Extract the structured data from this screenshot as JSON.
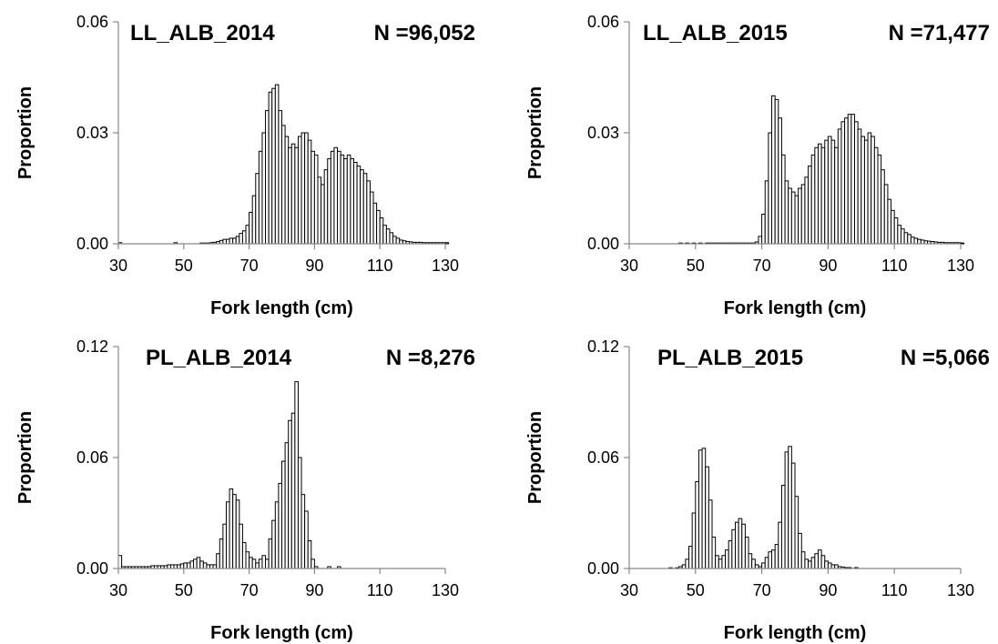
{
  "chart_data": [
    {
      "type": "bar",
      "title": "LL_ALB_2014",
      "n_label": "N =96,052",
      "xlabel": "Fork length (cm)",
      "ylabel": "Proportion",
      "xlim": [
        30,
        130
      ],
      "ylim": [
        0,
        0.06
      ],
      "xticks": [
        "30",
        "50",
        "70",
        "90",
        "110",
        "130"
      ],
      "yticks": [
        "0.00",
        "0.03",
        "0.06"
      ],
      "bar_color": "#ffffff",
      "edge_color": "#000000",
      "x_start": 30,
      "bin_width": 1,
      "values": [
        0.0003,
        0,
        0,
        0,
        0,
        0,
        0,
        0,
        0,
        0,
        0,
        0,
        0,
        0,
        0,
        0,
        0,
        0.0003,
        0,
        0,
        0,
        0,
        0,
        0,
        0,
        0.0002,
        0.0002,
        0.0002,
        0.0003,
        0.0004,
        0.0006,
        0.0009,
        0.0012,
        0.0012,
        0.0015,
        0.0015,
        0.002,
        0.0028,
        0.0035,
        0.005,
        0.0085,
        0.013,
        0.019,
        0.025,
        0.03,
        0.036,
        0.041,
        0.042,
        0.043,
        0.036,
        0.032,
        0.029,
        0.026,
        0.027,
        0.026,
        0.029,
        0.03,
        0.03,
        0.028,
        0.025,
        0.024,
        0.018,
        0.016,
        0.02,
        0.023,
        0.025,
        0.026,
        0.025,
        0.024,
        0.023,
        0.024,
        0.023,
        0.022,
        0.021,
        0.02,
        0.019,
        0.017,
        0.014,
        0.011,
        0.009,
        0.007,
        0.005,
        0.004,
        0.003,
        0.002,
        0.0015,
        0.001,
        0.0008,
        0.0006,
        0.0005,
        0.0004,
        0.0004,
        0.0004,
        0.0003,
        0.0003,
        0.0003,
        0.0003,
        0.0003,
        0.0003,
        0.0003,
        0.0003
      ]
    },
    {
      "type": "bar",
      "title": "LL_ALB_2015",
      "n_label": "N =71,477",
      "xlabel": "Fork length (cm)",
      "ylabel": "Proportion",
      "xlim": [
        30,
        130
      ],
      "ylim": [
        0,
        0.06
      ],
      "xticks": [
        "30",
        "50",
        "70",
        "90",
        "110",
        "130"
      ],
      "yticks": [
        "0.00",
        "0.03",
        "0.06"
      ],
      "bar_color": "#ffffff",
      "edge_color": "#000000",
      "x_start": 30,
      "bin_width": 1,
      "values": [
        0,
        0,
        0,
        0,
        0,
        0,
        0,
        0,
        0,
        0,
        0,
        0,
        0,
        0,
        0,
        0.0002,
        0,
        0.0002,
        0,
        0.0002,
        0,
        0.0002,
        0,
        0.0002,
        0.0002,
        0.0002,
        0.0002,
        0.0002,
        0.0002,
        0.0002,
        0.0002,
        0.0002,
        0.0002,
        0.0002,
        0.0002,
        0.0002,
        0.0002,
        0.0002,
        0.0005,
        0.002,
        0.008,
        0.017,
        0.03,
        0.04,
        0.039,
        0.034,
        0.024,
        0.017,
        0.015,
        0.014,
        0.013,
        0.015,
        0.016,
        0.018,
        0.021,
        0.024,
        0.026,
        0.027,
        0.026,
        0.028,
        0.029,
        0.028,
        0.026,
        0.031,
        0.033,
        0.034,
        0.035,
        0.035,
        0.033,
        0.031,
        0.029,
        0.028,
        0.03,
        0.029,
        0.026,
        0.024,
        0.02,
        0.016,
        0.012,
        0.009,
        0.007,
        0.005,
        0.004,
        0.003,
        0.0025,
        0.0018,
        0.0015,
        0.0012,
        0.001,
        0.0008,
        0.0007,
        0.0006,
        0.0005,
        0.0004,
        0.0004,
        0.0003,
        0.0003,
        0.0003,
        0.0003,
        0.0003,
        0.0002
      ]
    },
    {
      "type": "bar",
      "title": "PL_ALB_2014",
      "n_label": "N =8,276",
      "xlabel": "Fork length (cm)",
      "ylabel": "Proportion",
      "xlim": [
        30,
        130
      ],
      "ylim": [
        0,
        0.12
      ],
      "xticks": [
        "30",
        "50",
        "70",
        "90",
        "110",
        "130"
      ],
      "yticks": [
        "0.00",
        "0.06",
        "0.12"
      ],
      "bar_color": "#ffffff",
      "edge_color": "#000000",
      "x_start": 30,
      "bin_width": 1,
      "values": [
        0.007,
        0.001,
        0.001,
        0.001,
        0.001,
        0.001,
        0.001,
        0.001,
        0.001,
        0.001,
        0.0015,
        0.0015,
        0.0015,
        0.0015,
        0.0015,
        0.002,
        0.002,
        0.002,
        0.002,
        0.0025,
        0.003,
        0.003,
        0.004,
        0.005,
        0.006,
        0.004,
        0.003,
        0.002,
        0.002,
        0.002,
        0.008,
        0.016,
        0.024,
        0.036,
        0.043,
        0.04,
        0.037,
        0.024,
        0.014,
        0.009,
        0.006,
        0.005,
        0.003,
        0.005,
        0.007,
        0.005,
        0.016,
        0.026,
        0.036,
        0.046,
        0.058,
        0.068,
        0.08,
        0.084,
        0.101,
        0.06,
        0.04,
        0.031,
        0.015,
        0.005,
        0.001,
        0,
        0,
        0,
        0.001,
        0,
        0,
        0.001
      ]
    },
    {
      "type": "bar",
      "title": "PL_ALB_2015",
      "n_label": "N =5,066",
      "xlabel": "Fork length (cm)",
      "ylabel": "Proportion",
      "xlim": [
        30,
        130
      ],
      "ylim": [
        0,
        0.12
      ],
      "xticks": [
        "30",
        "50",
        "70",
        "90",
        "110",
        "130"
      ],
      "yticks": [
        "0.00",
        "0.06",
        "0.12"
      ],
      "bar_color": "#ffffff",
      "edge_color": "#000000",
      "x_start": 30,
      "bin_width": 1,
      "values": [
        0,
        0,
        0,
        0,
        0,
        0,
        0,
        0,
        0,
        0,
        0,
        0,
        0.0004,
        0,
        0.0004,
        0.001,
        0.002,
        0.005,
        0.012,
        0.03,
        0.047,
        0.064,
        0.065,
        0.055,
        0.037,
        0.017,
        0.007,
        0.005,
        0.007,
        0.01,
        0.015,
        0.021,
        0.025,
        0.027,
        0.024,
        0.017,
        0.008,
        0.005,
        0.002,
        0.001,
        0.003,
        0.006,
        0.009,
        0.01,
        0.013,
        0.025,
        0.045,
        0.063,
        0.066,
        0.057,
        0.039,
        0.019,
        0.009,
        0.005,
        0.004,
        0.006,
        0.008,
        0.01,
        0.007,
        0.004,
        0.003,
        0.002,
        0.002,
        0.001,
        0.0008,
        0.0005,
        0.0005,
        0,
        0.0005
      ]
    }
  ]
}
